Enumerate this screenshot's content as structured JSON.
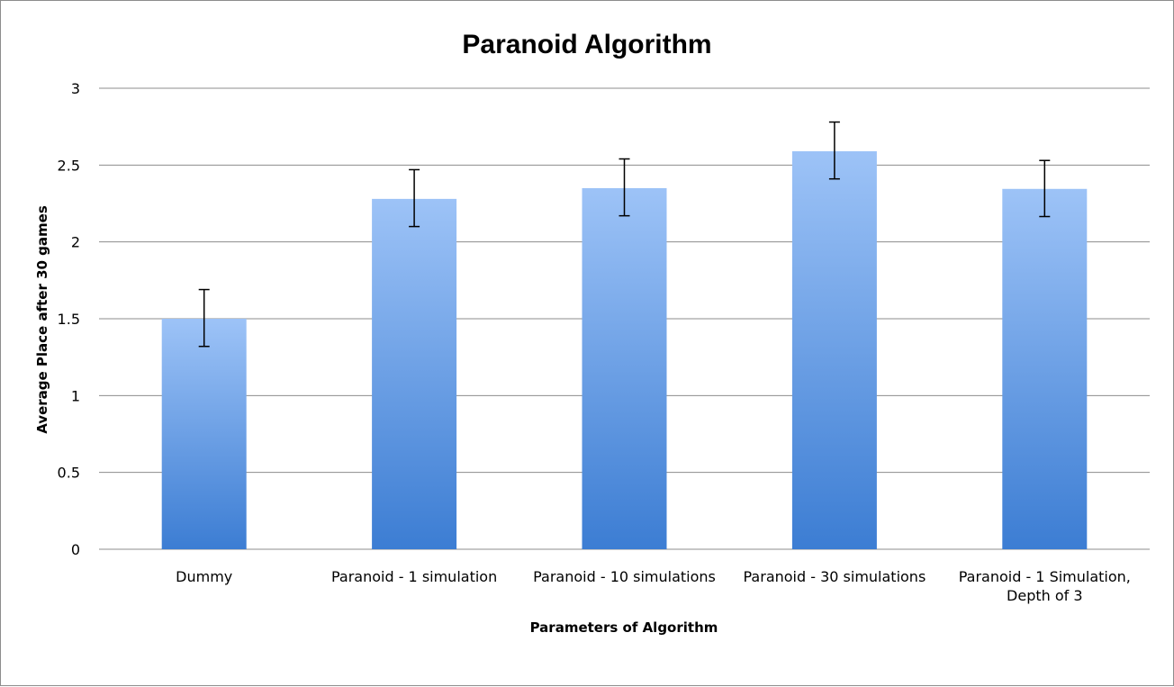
{
  "chart_data": {
    "type": "bar",
    "title": "Paranoid Algorithm",
    "xlabel": "Parameters of Algorithm",
    "ylabel": "Average Place after 30 games",
    "ylim": [
      0,
      3
    ],
    "yticks": [
      0,
      0.5,
      1,
      1.5,
      2,
      2.5,
      3
    ],
    "ytick_labels": [
      "0",
      "0.5",
      "1",
      "1.5",
      "2",
      "2.5",
      "3"
    ],
    "grid": true,
    "legend": "none",
    "categories": [
      [
        "Dummy"
      ],
      [
        "Paranoid - 1 simulation"
      ],
      [
        "Paranoid - 10 simulations"
      ],
      [
        "Paranoid - 30 simulations"
      ],
      [
        "Paranoid - 1 Simulation,",
        "Depth of 3"
      ]
    ],
    "values": [
      1.5,
      2.28,
      2.35,
      2.59,
      2.345
    ],
    "error_low": [
      1.32,
      2.1,
      2.17,
      2.41,
      2.165
    ],
    "error_high": [
      1.69,
      2.47,
      2.54,
      2.78,
      2.53
    ],
    "bar_color_top": "#9dc3f7",
    "bar_color_bottom": "#3c7dd3",
    "grid_color": "#8c8c8c",
    "error_color": "#000000"
  }
}
